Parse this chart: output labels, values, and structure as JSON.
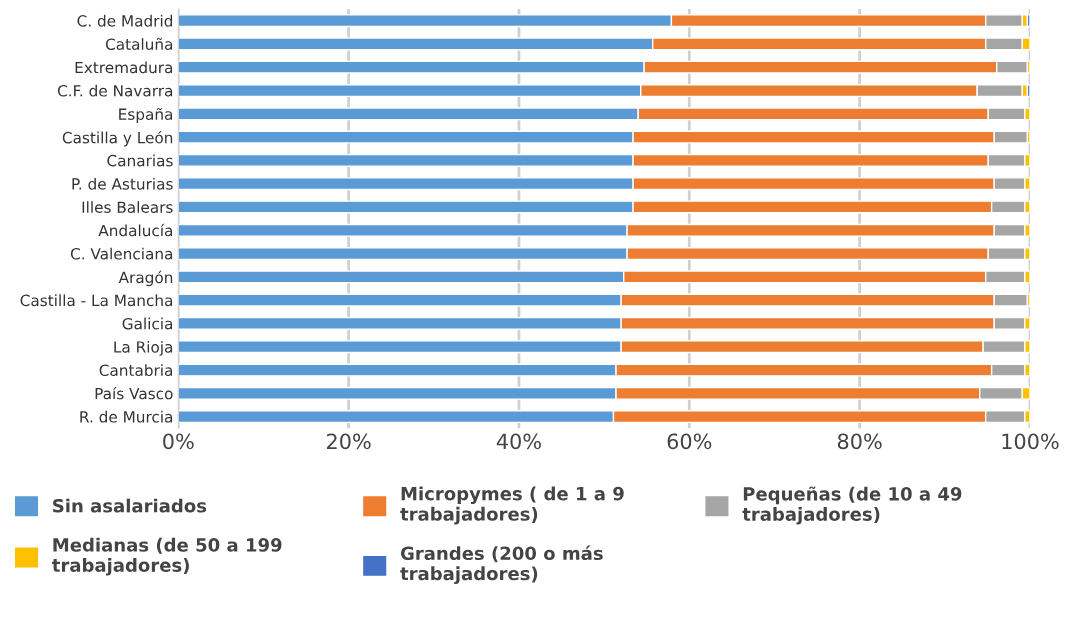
{
  "chart_data": {
    "type": "bar",
    "orientation": "horizontal",
    "stacked": true,
    "categories": [
      "C. de Madrid",
      "Cataluña",
      "Extremadura",
      "C.F. de Navarra",
      "España",
      "Castilla y León",
      "Canarias",
      "P. de Asturias",
      "Illes Balears",
      "Andalucía",
      "C. Valenciana",
      "Aragón",
      "Castilla - La Mancha",
      "Galicia",
      "La Rioja",
      "Cantabria",
      "País Vasco",
      "R. de Murcia"
    ],
    "series": [
      {
        "name": "Sin asalariados",
        "color": "#5b9bd5",
        "values": [
          57.9,
          55.7,
          54.7,
          54.3,
          54.0,
          53.4,
          53.4,
          53.4,
          53.4,
          52.7,
          52.7,
          52.3,
          52.0,
          52.0,
          52.0,
          51.4,
          51.4,
          51.1
        ]
      },
      {
        "name": "Micropymes ( de 1 a 9\ntrabajadores)",
        "color": "#ed7d31",
        "values": [
          36.9,
          39.1,
          41.4,
          39.5,
          41.1,
          42.4,
          41.7,
          42.4,
          42.1,
          43.1,
          42.4,
          42.5,
          43.8,
          43.8,
          42.5,
          44.1,
          42.7,
          43.7
        ]
      },
      {
        "name": "Pequeñas (de 10 a 49\ntrabajadores)",
        "color": "#a5a5a5",
        "values": [
          4.3,
          4.3,
          3.6,
          5.3,
          4.3,
          3.9,
          4.3,
          3.6,
          3.9,
          3.6,
          4.3,
          4.6,
          3.9,
          3.6,
          4.9,
          3.9,
          5.0,
          4.6
        ]
      },
      {
        "name": "Medianas (de 50 a 199\ntrabajadores)",
        "color": "#ffc000",
        "values": [
          0.6,
          0.9,
          0.3,
          0.6,
          0.6,
          0.3,
          0.6,
          0.6,
          0.6,
          0.6,
          0.6,
          0.6,
          0.3,
          0.6,
          0.6,
          0.6,
          0.9,
          0.6
        ]
      },
      {
        "name": "Grandes (200 o más\ntrabajadores)",
        "color": "#4472c4",
        "values": [
          0.3,
          null,
          null,
          0.3,
          null,
          null,
          null,
          null,
          null,
          null,
          null,
          null,
          null,
          null,
          null,
          null,
          null,
          null
        ]
      }
    ],
    "xlim": [
      0,
      100
    ],
    "xticks": [
      {
        "value": 0,
        "label": "0%"
      },
      {
        "value": 20,
        "label": "20%"
      },
      {
        "value": 40,
        "label": "40%"
      },
      {
        "value": 60,
        "label": "60%"
      },
      {
        "value": 80,
        "label": "80%"
      },
      {
        "value": 100,
        "label": "100%"
      }
    ],
    "grid": "x",
    "legend": "bottom"
  }
}
